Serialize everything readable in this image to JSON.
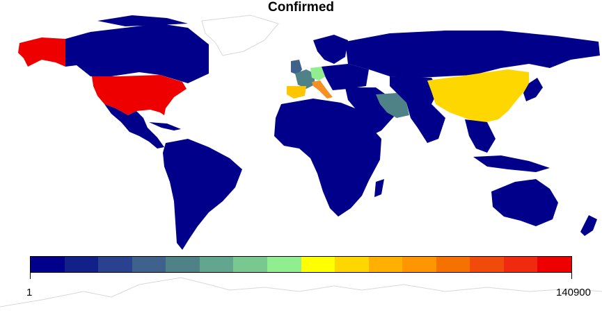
{
  "title": "Confirmed",
  "legend": {
    "min_label": "1",
    "max_label": "140900",
    "colors": [
      "#00008b",
      "#12208a",
      "#2a4190",
      "#3f628c",
      "#4f8286",
      "#62a690",
      "#78c88f",
      "#90ee90",
      "#ffff00",
      "#ffd700",
      "#ffb000",
      "#ff9500",
      "#f57200",
      "#f04b0a",
      "#ef2a0e",
      "#ef0000"
    ]
  },
  "map_colors": {
    "background": "#ffffff",
    "low": "#00008b",
    "ocean_outline": "#d8d8d8",
    "usa": "#ef0000",
    "china": "#ffd700",
    "italy": "#f59023",
    "spain": "#ffc500",
    "germany": "#90ee90",
    "france": "#4f8286",
    "iran": "#4f8286",
    "uk": "#3f628c"
  },
  "chart_data": {
    "type": "heatmap",
    "subtype": "choropleth world map",
    "title": "Confirmed",
    "scale": {
      "min": 1,
      "max": 140900,
      "bins": 16
    },
    "regions": [
      {
        "name": "United States",
        "value": 140900
      },
      {
        "name": "China",
        "value": 82000
      },
      {
        "name": "Italy",
        "value": 97000
      },
      {
        "name": "Spain",
        "value": 80000
      },
      {
        "name": "Germany",
        "value": 62000
      },
      {
        "name": "France",
        "value": 40000
      },
      {
        "name": "Iran",
        "value": 38000
      },
      {
        "name": "United Kingdom",
        "value": 19000
      }
    ]
  }
}
